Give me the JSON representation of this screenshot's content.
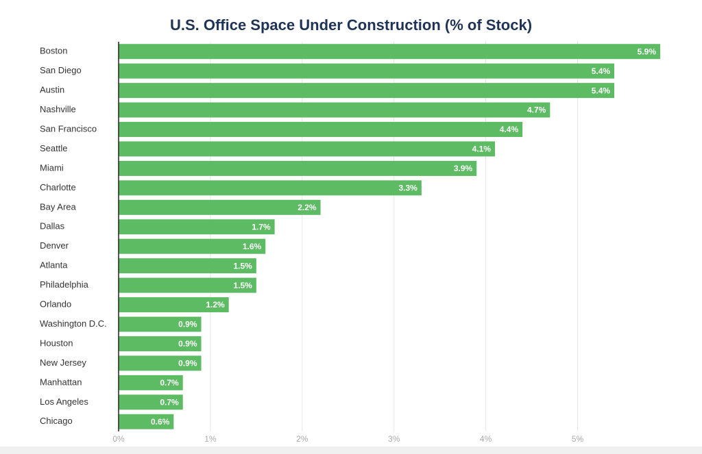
{
  "chart_data": {
    "type": "bar",
    "orientation": "horizontal",
    "title": "U.S. Office Space Under Construction (% of Stock)",
    "categories": [
      "Boston",
      "San Diego",
      "Austin",
      "Nashville",
      "San Francisco",
      "Seattle",
      "Miami",
      "Charlotte",
      "Bay Area",
      "Dallas",
      "Denver",
      "Atlanta",
      "Philadelphia",
      "Orlando",
      "Washington D.C.",
      "Houston",
      "New Jersey",
      "Manhattan",
      "Los Angeles",
      "Chicago"
    ],
    "values": [
      5.9,
      5.4,
      5.4,
      4.7,
      4.4,
      4.1,
      3.9,
      3.3,
      2.2,
      1.7,
      1.6,
      1.5,
      1.5,
      1.2,
      0.9,
      0.9,
      0.9,
      0.7,
      0.7,
      0.6
    ],
    "value_labels": [
      "5.9%",
      "5.4%",
      "5.4%",
      "4.7%",
      "4.4%",
      "4.1%",
      "3.9%",
      "3.3%",
      "2.2%",
      "1.7%",
      "1.6%",
      "1.5%",
      "1.5%",
      "1.2%",
      "0.9%",
      "0.9%",
      "0.9%",
      "0.7%",
      "0.7%",
      "0.6%"
    ],
    "color": "#5dbb63",
    "xlim": [
      0,
      5.9
    ],
    "xticks": [
      {
        "value": 0,
        "label": "0%"
      },
      {
        "value": 1,
        "label": "1%"
      },
      {
        "value": 2,
        "label": "2%"
      },
      {
        "value": 3,
        "label": "3%"
      },
      {
        "value": 4,
        "label": "4%"
      },
      {
        "value": 5,
        "label": "5%"
      }
    ],
    "grid": true
  }
}
